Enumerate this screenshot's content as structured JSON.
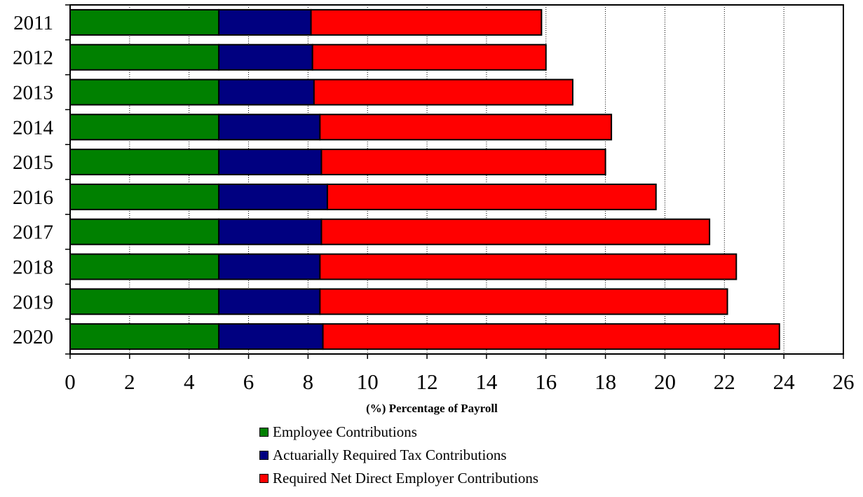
{
  "chart_data": {
    "type": "bar",
    "orientation": "horizontal",
    "stacked": true,
    "xlabel": "(%) Percentage of Payroll",
    "xlim": [
      0,
      26
    ],
    "xticks": [
      0,
      2,
      4,
      6,
      8,
      10,
      12,
      14,
      16,
      18,
      20,
      22,
      24,
      26
    ],
    "grid": "vertical dotted",
    "legend_position": "bottom",
    "categories": [
      "2011",
      "2012",
      "2013",
      "2014",
      "2015",
      "2016",
      "2017",
      "2018",
      "2019",
      "2020"
    ],
    "series": [
      {
        "name": "Employee Contributions",
        "color": "#008000",
        "values": [
          5.0,
          5.0,
          5.0,
          5.0,
          5.0,
          5.0,
          5.0,
          5.0,
          5.0,
          5.0
        ]
      },
      {
        "name": "Actuarially Required Tax Contributions",
        "color": "#000080",
        "values": [
          3.1,
          3.15,
          3.2,
          3.4,
          3.45,
          3.65,
          3.45,
          3.4,
          3.4,
          3.5
        ]
      },
      {
        "name": "Required Net Direct Employer Contributions",
        "color": "#ff0000",
        "values": [
          7.75,
          7.85,
          8.7,
          9.8,
          9.55,
          11.05,
          13.05,
          14.0,
          13.7,
          15.35
        ]
      }
    ]
  }
}
